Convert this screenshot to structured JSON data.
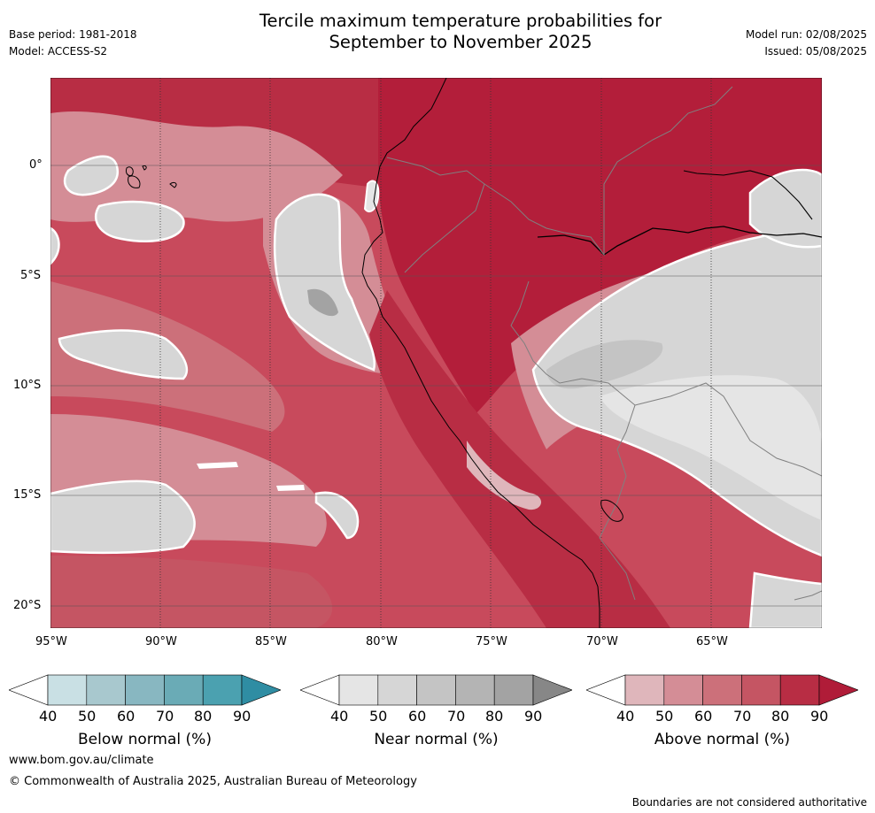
{
  "header": {
    "title_line1": "Tercile maximum temperature probabilities for",
    "title_line2": "September to November 2025",
    "base_period": "Base period: 1981-2018",
    "model": "Model: ACCESS-S2",
    "model_run": "Model run: 02/08/2025",
    "issued": "Issued: 05/08/2025"
  },
  "map": {
    "lat_ticks": [
      "0°",
      "5°S",
      "10°S",
      "15°S",
      "20°S"
    ],
    "lon_ticks": [
      "95°W",
      "90°W",
      "85°W",
      "80°W",
      "75°W",
      "70°W",
      "65°W"
    ],
    "colors": {
      "ocean_base": "#c84a5c",
      "deep_red": "#b31e3a",
      "mid_red": "#c9505f",
      "light_red": "#d48d96",
      "pale_red": "#dfb6bb",
      "near_normal": "#d6d6d6",
      "near_dark": "#a3a3a3",
      "near_light": "#e5e5e5"
    }
  },
  "colorbars": [
    {
      "name": "below",
      "label": "Below normal (%)",
      "ticks": [
        "40",
        "50",
        "60",
        "70",
        "80",
        "90"
      ],
      "colors": [
        "#ffffff",
        "#c9e0e4",
        "#a8c8ce",
        "#88b7c1",
        "#6aabb6",
        "#4ba1b0",
        "#2f8da3"
      ]
    },
    {
      "name": "near",
      "label": "Near normal (%)",
      "ticks": [
        "40",
        "50",
        "60",
        "70",
        "80",
        "90"
      ],
      "colors": [
        "#ffffff",
        "#e5e5e5",
        "#d6d6d6",
        "#c4c4c4",
        "#b4b4b4",
        "#a3a3a3",
        "#878787"
      ]
    },
    {
      "name": "above",
      "label": "Above normal (%)",
      "ticks": [
        "40",
        "50",
        "60",
        "70",
        "80",
        "90"
      ],
      "colors": [
        "#ffffff",
        "#dfb6bb",
        "#d48d96",
        "#cc707a",
        "#c55563",
        "#b82d44",
        "#b01c38"
      ]
    }
  ],
  "footer": {
    "website": "www.bom.gov.au/climate",
    "copyright": "© Commonwealth of Australia 2025, Australian Bureau of Meteorology",
    "disclaimer": "Boundaries are not considered authoritative"
  }
}
